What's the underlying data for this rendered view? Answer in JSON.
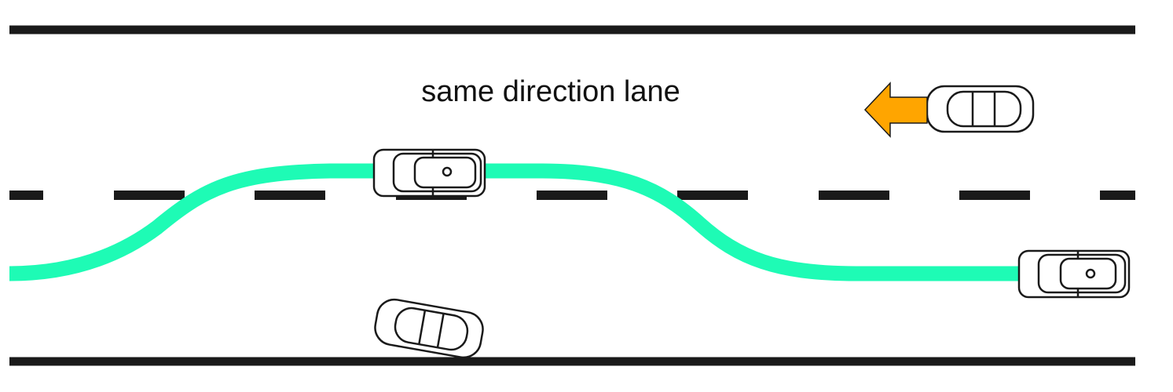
{
  "diagram": {
    "lane_label": "same direction lane",
    "colors": {
      "road_edge": "#1a1a1a",
      "lane_divider": "#1a1a1a",
      "trajectory": "#1efbb5",
      "oncoming_arrow": "#ffa500"
    },
    "elements": {
      "top_road_edge": "road-edge-line",
      "bottom_road_edge": "road-edge-line",
      "center_divider": "dashed-lane-divider",
      "trajectory": "overtaking-path",
      "arrow": "left-arrow-icon",
      "vehicles": [
        {
          "role": "overtaking-vehicle-start",
          "icon": "car-icon"
        },
        {
          "role": "overtaking-vehicle-mid",
          "icon": "car-icon"
        },
        {
          "role": "slow-vehicle",
          "icon": "car-icon"
        },
        {
          "role": "oncoming-vehicle",
          "icon": "car-icon"
        }
      ]
    }
  }
}
